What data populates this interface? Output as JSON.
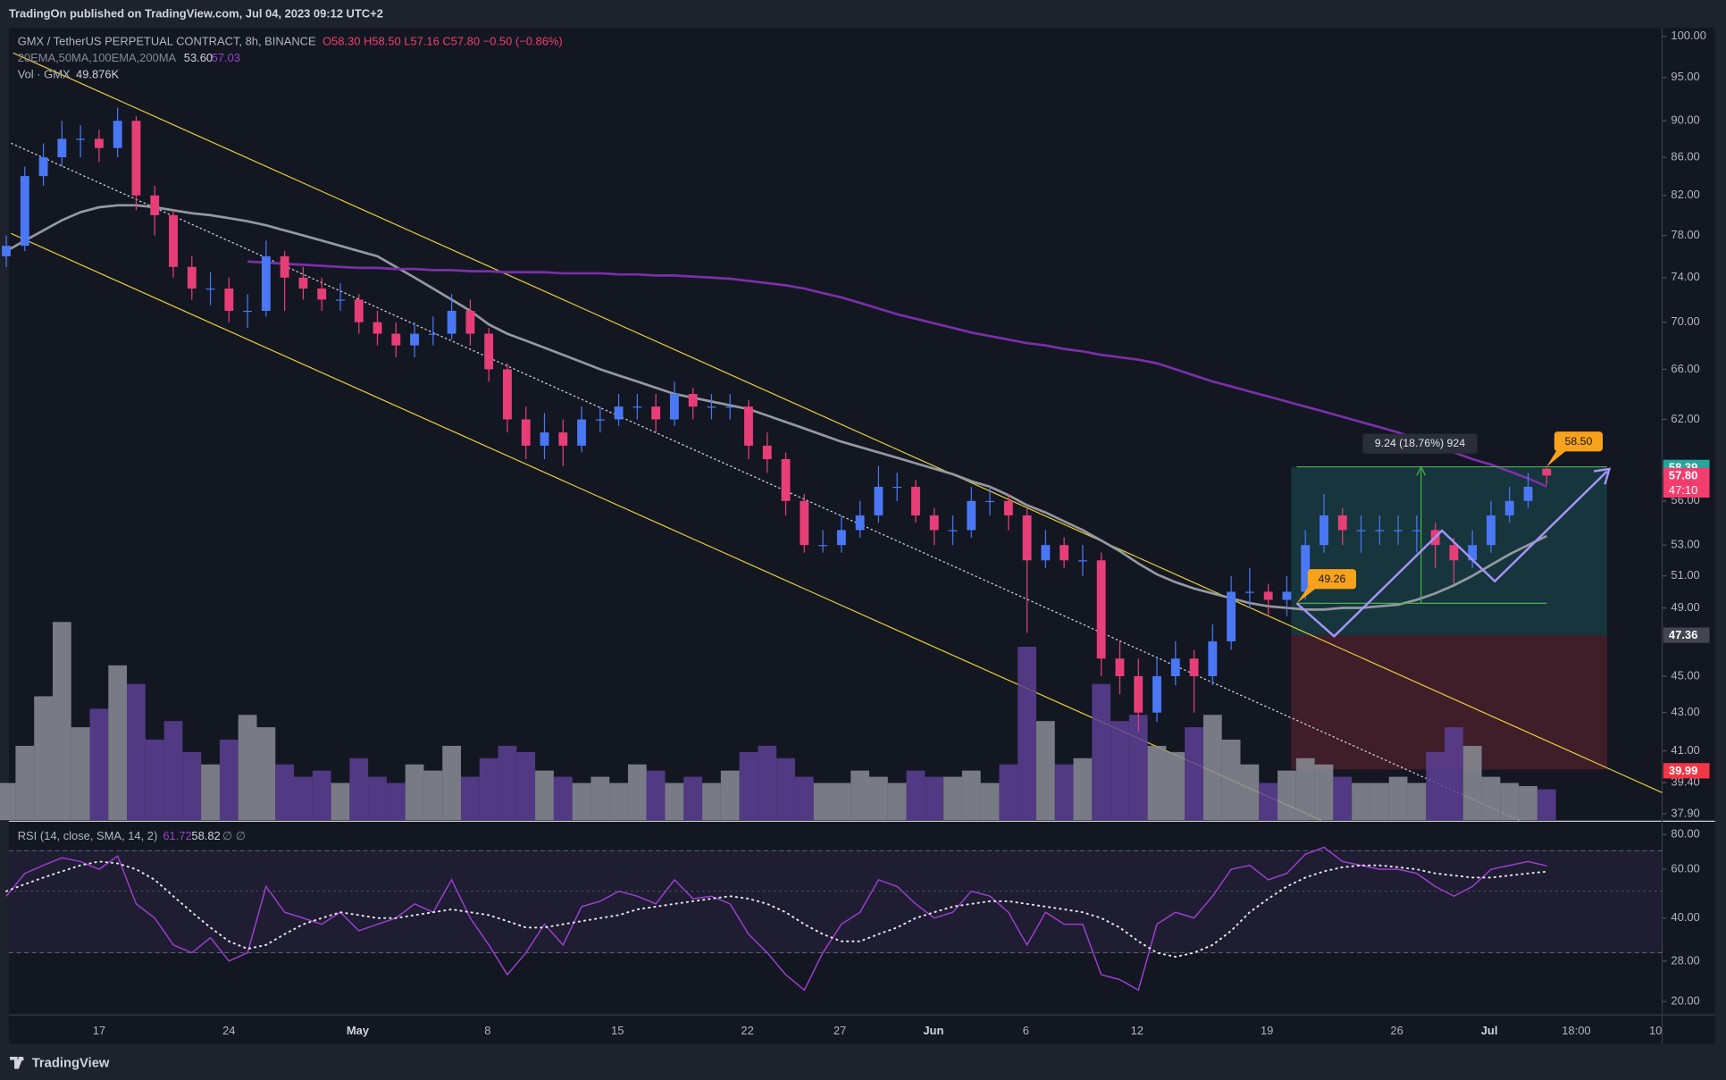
{
  "header": {
    "published": "TradingOn published on TradingView.com, Jul 04, 2023 09:12 UTC+2"
  },
  "footer": {
    "brand": "TradingView"
  },
  "chart_data": {
    "type": "candlestick",
    "title": "GMX / TetherUS PERPETUAL CONTRACT, 8h, BINANCE",
    "legend_ohlc": "O58.30 H58.50 L57.16 C57.80 −0.50 (−0.86%)",
    "ylog": true,
    "ylim": [
      37.6,
      101.1
    ],
    "yticks": [
      {
        "value": 100,
        "label": "100.00"
      },
      {
        "value": 95,
        "label": "95.00"
      },
      {
        "value": 90,
        "label": "90.00"
      },
      {
        "value": 86,
        "label": "86.00"
      },
      {
        "value": 82,
        "label": "82.00"
      },
      {
        "value": 78,
        "label": "78.00"
      },
      {
        "value": 74,
        "label": "74.00"
      },
      {
        "value": 70,
        "label": "70.00"
      },
      {
        "value": 66,
        "label": "66.00"
      },
      {
        "value": 62,
        "label": "62.00"
      },
      {
        "value": 56,
        "label": "56.00"
      },
      {
        "value": 53,
        "label": "53.00"
      },
      {
        "value": 51,
        "label": "51.00"
      },
      {
        "value": 49,
        "label": "49.00"
      },
      {
        "value": 45,
        "label": "45.00"
      },
      {
        "value": 43,
        "label": "43.00"
      },
      {
        "value": 41,
        "label": "41.00"
      },
      {
        "value": 39.4,
        "label": "39.40"
      },
      {
        "value": 37.9,
        "label": "37.90"
      }
    ],
    "xtick_labels": [
      "17",
      "24",
      "May",
      "8",
      "15",
      "22",
      "27",
      "Jun",
      "6",
      "12",
      "19",
      "26",
      "Jul",
      "18:00",
      "10"
    ],
    "up_color": "#4a78f5",
    "down_color": "#e83e78",
    "open": [
      76,
      77,
      84,
      86,
      88,
      88,
      87,
      90,
      82,
      80,
      75,
      73,
      73,
      71,
      71,
      76,
      74,
      73,
      72,
      72,
      70,
      69,
      68,
      69,
      69,
      71,
      69,
      66,
      62,
      60,
      61,
      60,
      62,
      62,
      63,
      63,
      62,
      64,
      63,
      63,
      63,
      60,
      59,
      56,
      53,
      53,
      54,
      55,
      57,
      57,
      55,
      54,
      54,
      56,
      56,
      55,
      52,
      53,
      52,
      52,
      46,
      45,
      43,
      45,
      46,
      45,
      47,
      50,
      50,
      49.5,
      50,
      53,
      55,
      54,
      54,
      54,
      54,
      54,
      53,
      52,
      53,
      55,
      56,
      58.3
    ],
    "high": [
      78,
      85,
      87.5,
      90,
      89.5,
      89,
      91.5,
      90.5,
      83,
      80.5,
      76,
      74.5,
      74,
      72.5,
      77.5,
      76.5,
      75,
      74,
      73.5,
      72.5,
      71,
      70,
      70,
      70.5,
      72.5,
      72,
      69.5,
      66.5,
      63,
      62.5,
      62,
      63,
      63,
      64,
      64,
      64,
      65,
      64.5,
      64,
      64,
      63.5,
      61,
      59.5,
      56.5,
      54,
      55,
      56,
      58.5,
      58,
      57.5,
      55.5,
      55,
      57,
      57,
      56.5,
      55.5,
      54,
      53.5,
      53,
      52.5,
      47,
      46,
      46,
      47,
      46.5,
      48,
      51,
      51.5,
      50.5,
      51,
      54,
      56.5,
      55.5,
      55,
      55,
      55,
      55,
      54.5,
      53.5,
      54,
      56,
      57,
      58,
      58.5
    ],
    "low": [
      75,
      76.5,
      83,
      85,
      86,
      85.5,
      86,
      80.5,
      78,
      74,
      72,
      71.5,
      70,
      69.5,
      70.5,
      71,
      72,
      71,
      71,
      69,
      68,
      67,
      67,
      68,
      68.5,
      68,
      65,
      61,
      59,
      59,
      58.5,
      59.5,
      61,
      61.5,
      62,
      61,
      61.5,
      62,
      62,
      62,
      59,
      58,
      55,
      52.5,
      52.5,
      52.5,
      53.5,
      54.5,
      56,
      54.5,
      53,
      53,
      53.5,
      55,
      54,
      47.5,
      51.5,
      51.5,
      51,
      45,
      44,
      42,
      42.5,
      44.5,
      43,
      44.5,
      46.5,
      49,
      48.5,
      48.5,
      49.5,
      52.5,
      53,
      52.5,
      53,
      53,
      52.5,
      51.5,
      50.5,
      51.5,
      52.5,
      54.5,
      55.5,
      57.16
    ],
    "close": [
      77,
      84,
      86,
      88,
      88,
      87,
      90,
      82,
      80,
      75,
      73,
      73,
      71,
      71,
      76,
      74,
      73,
      72,
      72,
      70,
      69,
      68,
      69,
      69,
      71,
      69,
      66,
      62,
      60,
      61,
      60,
      62,
      62,
      63,
      63,
      62,
      64,
      63,
      63,
      63,
      60,
      59,
      56,
      53,
      53,
      54,
      55,
      57,
      57,
      55,
      54,
      54,
      56,
      56,
      55,
      52,
      53,
      52,
      52,
      46,
      45,
      43,
      45,
      46,
      45,
      47,
      50,
      50,
      49.5,
      50,
      53,
      55,
      54,
      54,
      54,
      54,
      54,
      53,
      52,
      53,
      55,
      56,
      57,
      57.8
    ],
    "indicator_label": "20EMA,50MA,100EMA,200MA",
    "ma_series": [
      {
        "color": "#9598a1",
        "last_label": "53.60",
        "values": [
          76.5,
          77.5,
          78.5,
          79.5,
          80.3,
          80.8,
          81,
          81,
          80.8,
          80.5,
          80.2,
          80,
          79.7,
          79.4,
          79,
          78.5,
          78,
          77.5,
          77,
          76.5,
          76,
          75,
          74,
          73,
          72,
          71,
          69.8,
          69,
          68.4,
          67.8,
          67.2,
          66.6,
          66,
          65.5,
          65,
          64.5,
          64,
          63.7,
          63.4,
          63.1,
          62.8,
          62.3,
          61.8,
          61.3,
          60.8,
          60.3,
          59.9,
          59.5,
          59.1,
          58.7,
          58.3,
          57.9,
          57.4,
          57,
          56.4,
          55.7,
          55.2,
          54.6,
          54,
          53.3,
          52.6,
          51.8,
          51.1,
          50.6,
          50.2,
          49.9,
          49.6,
          49.3,
          49.1,
          49,
          48.9,
          48.9,
          49,
          49,
          49.1,
          49.2,
          49.5,
          49.9,
          50.4,
          51,
          51.7,
          52.4,
          53,
          53.6
        ]
      },
      {
        "color": "#7b2fa8",
        "last_label": "57.03",
        "values": [
          null,
          null,
          null,
          null,
          null,
          null,
          null,
          null,
          null,
          null,
          null,
          null,
          null,
          75.5,
          75.4,
          75.3,
          75.2,
          75.1,
          75,
          74.9,
          74.9,
          74.8,
          74.8,
          74.7,
          74.7,
          74.6,
          74.6,
          74.5,
          74.5,
          74.5,
          74.4,
          74.4,
          74.4,
          74.3,
          74.3,
          74.2,
          74.2,
          74.1,
          74,
          73.9,
          73.7,
          73.5,
          73.3,
          73,
          72.6,
          72.2,
          71.7,
          71.2,
          70.7,
          70.3,
          69.9,
          69.5,
          69.1,
          68.8,
          68.5,
          68.2,
          68,
          67.7,
          67.5,
          67.2,
          67,
          66.8,
          66.5,
          66,
          65.5,
          65,
          64.6,
          64.2,
          63.8,
          63.4,
          63,
          62.6,
          62.2,
          61.8,
          61.4,
          61,
          60.5,
          60,
          59.5,
          59,
          58.6,
          58.1,
          57.6,
          57.03
        ]
      }
    ],
    "volume": {
      "label": "Vol · GMX",
      "last_label": "49.876K",
      "up_color": "#8b8d96",
      "down_color": "#5d3f94",
      "values": [
        60,
        120,
        200,
        320,
        150,
        180,
        250,
        220,
        130,
        160,
        110,
        90,
        130,
        170,
        150,
        90,
        70,
        80,
        60,
        100,
        70,
        60,
        90,
        80,
        120,
        70,
        100,
        120,
        110,
        80,
        70,
        60,
        70,
        60,
        90,
        80,
        60,
        70,
        60,
        80,
        110,
        120,
        100,
        70,
        60,
        60,
        80,
        70,
        60,
        80,
        70,
        70,
        80,
        60,
        90,
        280,
        160,
        90,
        100,
        220,
        160,
        170,
        120,
        110,
        150,
        170,
        130,
        90,
        60,
        80,
        100,
        90,
        70,
        60,
        60,
        70,
        60,
        110,
        150,
        120,
        70,
        60,
        55,
        49.876
      ]
    },
    "price_labels": [
      {
        "value": 58.39,
        "label": "58.39",
        "color": "#26a69a"
      },
      {
        "value": 57.8,
        "label": "57.80",
        "color": "#f23d6f"
      },
      {
        "value": 47.36,
        "label": "47.36",
        "color": "#434651"
      },
      {
        "value": 39.99,
        "label": "39.99",
        "color": "#f23645"
      }
    ],
    "countdown": "47:10",
    "measure_label": "9.24 (18.76%) 924",
    "callouts": [
      "49.26",
      "58.50"
    ],
    "rsi": {
      "label": "RSI (14, close, SMA, 14, 2)",
      "extra": "∅ ∅",
      "ylog": true,
      "ylim": [
        17.9,
        87.8
      ],
      "yticks": [
        {
          "value": 80,
          "label": "80.00"
        },
        {
          "value": 60,
          "label": "60.00"
        },
        {
          "value": 40,
          "label": "40.00"
        },
        {
          "value": 28,
          "label": "28.00"
        },
        {
          "value": 20,
          "label": "20.00"
        }
      ],
      "bands": [
        70,
        50,
        30
      ],
      "line": {
        "color": "#9c3fcf",
        "last_label": "61.72",
        "values": [
          48,
          58,
          62,
          66,
          64,
          60,
          67,
          45,
          40,
          32,
          30,
          34,
          28,
          30,
          52,
          42,
          40,
          38,
          42,
          36,
          38,
          40,
          45,
          42,
          55,
          40,
          32,
          25,
          30,
          38,
          32,
          44,
          46,
          50,
          48,
          45,
          55,
          47,
          48,
          45,
          35,
          30,
          25,
          22,
          30,
          38,
          42,
          55,
          52,
          45,
          40,
          42,
          50,
          48,
          42,
          32,
          42,
          38,
          38,
          25,
          24,
          22,
          38,
          42,
          40,
          48,
          60,
          62,
          55,
          58,
          68,
          72,
          64,
          62,
          60,
          60,
          58,
          52,
          48,
          52,
          60,
          62,
          64,
          61.72
        ]
      },
      "sma": {
        "color": "#e6e6ea",
        "last_label": "58.82",
        "values": [
          50,
          53,
          56,
          59,
          62,
          64,
          63,
          60,
          55,
          48,
          42,
          37,
          33,
          31,
          32,
          35,
          38,
          40,
          42,
          41,
          40,
          40,
          41,
          42,
          43,
          42,
          41,
          39,
          37,
          37,
          38,
          39,
          40,
          41,
          43,
          44,
          45,
          46,
          47,
          48,
          47,
          45,
          42,
          38,
          35,
          33,
          33,
          35,
          37,
          40,
          42,
          44,
          45,
          46,
          46,
          45,
          44,
          43,
          42,
          40,
          37,
          33,
          30,
          29,
          30,
          32,
          36,
          42,
          47,
          52,
          56,
          59,
          61,
          62,
          62,
          61,
          60,
          58,
          57,
          56,
          56,
          57,
          58,
          58.82
        ]
      }
    }
  }
}
